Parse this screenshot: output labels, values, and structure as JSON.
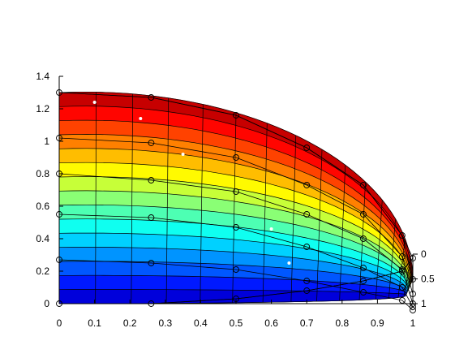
{
  "chart_data": {
    "type": "surface",
    "title": "",
    "xlabel": "",
    "ylabel": "",
    "zlabel": "",
    "xlim": [
      0,
      1
    ],
    "ylim": [
      0,
      1.4
    ],
    "zlim": [
      0,
      1
    ],
    "x_ticks": [
      "0",
      "0.1",
      "0.2",
      "0.3",
      "0.4",
      "0.5",
      "0.6",
      "0.7",
      "0.8",
      "0.9",
      "1"
    ],
    "y_ticks": [
      "0",
      "0.2",
      "0.4",
      "0.6",
      "0.8",
      "1",
      "1.2",
      "1.4"
    ],
    "z_ticks": [
      "0",
      "0.5",
      "1"
    ],
    "grid": false,
    "colormap": "jet",
    "colorbands": 15,
    "surface": {
      "u_range": [
        0,
        1
      ],
      "v_range": [
        0,
        1
      ],
      "v_mesh_lines": 15,
      "u_mesh_lines": 15,
      "boundary_samples": [
        {
          "u": 0.0,
          "x": 0.0,
          "y": 1.3
        },
        {
          "u": 0.2,
          "x": 0.35,
          "y": 1.2
        },
        {
          "u": 0.4,
          "x": 0.62,
          "y": 1.0
        },
        {
          "u": 0.6,
          "x": 0.83,
          "y": 0.78
        },
        {
          "u": 0.8,
          "x": 0.95,
          "y": 0.5
        },
        {
          "u": 1.0,
          "x": 1.0,
          "y": 0.17
        }
      ]
    },
    "control_net": {
      "rows": [
        [
          [
            0,
            1.3
          ],
          [
            0.26,
            1.27
          ],
          [
            0.5,
            1.16
          ],
          [
            0.7,
            0.96
          ],
          [
            0.86,
            0.73
          ],
          [
            0.97,
            0.42
          ],
          [
            1.0,
            0.15
          ]
        ],
        [
          [
            0,
            1.02
          ],
          [
            0.26,
            0.99
          ],
          [
            0.5,
            0.9
          ],
          [
            0.7,
            0.73
          ],
          [
            0.86,
            0.55
          ],
          [
            0.97,
            0.29
          ],
          [
            1.0,
            0.06
          ]
        ],
        [
          [
            0,
            0.8
          ],
          [
            0.26,
            0.76
          ],
          [
            0.5,
            0.69
          ],
          [
            0.7,
            0.55
          ],
          [
            0.86,
            0.4
          ],
          [
            0.97,
            0.21
          ],
          [
            1.0,
            0.0
          ]
        ],
        [
          [
            0,
            0.55
          ],
          [
            0.26,
            0.53
          ],
          [
            0.5,
            0.47
          ],
          [
            0.7,
            0.35
          ],
          [
            0.86,
            0.22
          ],
          [
            0.97,
            0.1
          ],
          [
            1.0,
            -0.02
          ]
        ],
        [
          [
            0,
            0.27
          ],
          [
            0.26,
            0.25
          ],
          [
            0.5,
            0.21
          ],
          [
            0.7,
            0.14
          ],
          [
            0.86,
            0.07
          ],
          [
            0.97,
            0.02
          ],
          [
            1.0,
            -0.04
          ]
        ],
        [
          [
            0,
            0.0
          ],
          [
            0.26,
            0.0
          ],
          [
            0.5,
            0.03
          ],
          [
            0.7,
            0.08
          ],
          [
            0.86,
            0.14
          ],
          [
            0.97,
            0.2
          ],
          [
            1.0,
            0.28
          ]
        ]
      ],
      "outline": [
        [
          0,
          1.3
        ],
        [
          0.26,
          1.27
        ],
        [
          0.5,
          1.16
        ],
        [
          0.7,
          0.96
        ],
        [
          0.86,
          0.73
        ],
        [
          0.97,
          0.42
        ],
        [
          1.0,
          0.28
        ],
        [
          0.97,
          0.2
        ],
        [
          0.86,
          0.14
        ],
        [
          0.7,
          0.08
        ],
        [
          0.5,
          0.03
        ],
        [
          0.26,
          0.0
        ],
        [
          0,
          0.0
        ]
      ]
    },
    "highlight_points": [
      [
        0.1,
        1.24
      ],
      [
        0.23,
        1.14
      ],
      [
        0.35,
        0.92
      ],
      [
        0.6,
        0.46
      ],
      [
        0.65,
        0.25
      ]
    ]
  }
}
